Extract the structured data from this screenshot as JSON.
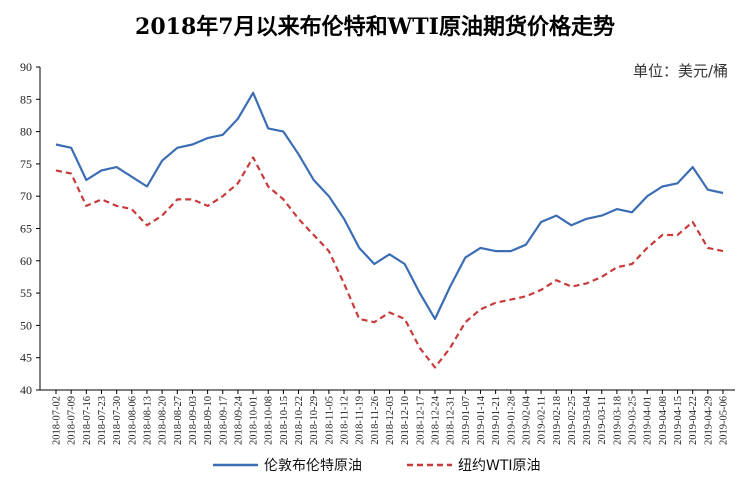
{
  "chart_data": {
    "type": "line",
    "title": "2018年7月以来布伦特和WTI原油期货价格走势",
    "unit_label": "单位：美元/桶",
    "ylim": [
      40,
      90
    ],
    "yticks": [
      40,
      45,
      50,
      55,
      60,
      65,
      70,
      75,
      80,
      85,
      90
    ],
    "xticks": [
      "2018-07-02",
      "2018-07-09",
      "2018-07-16",
      "2018-07-23",
      "2018-07-30",
      "2018-08-06",
      "2018-08-13",
      "2018-08-20",
      "2018-08-27",
      "2018-09-03",
      "2018-09-10",
      "2018-09-17",
      "2018-09-24",
      "2018-10-01",
      "2018-10-08",
      "2018-10-15",
      "2018-10-22",
      "2018-10-29",
      "2018-11-05",
      "2018-11-12",
      "2018-11-19",
      "2018-11-26",
      "2018-12-03",
      "2018-12-10",
      "2018-12-17",
      "2018-12-24",
      "2018-12-31",
      "2019-01-07",
      "2019-01-14",
      "2019-01-21",
      "2019-01-28",
      "2019-02-04",
      "2019-02-11",
      "2019-02-18",
      "2019-02-25",
      "2019-03-04",
      "2019-03-11",
      "2019-03-18",
      "2019-03-25",
      "2019-04-01",
      "2019-04-08",
      "2019-04-15",
      "2019-04-22",
      "2019-04-29",
      "2019-05-06"
    ],
    "grid": false,
    "legend_position": "bottom",
    "series": [
      {
        "name": "伦敦布伦特原油",
        "color": "#3b6db5",
        "style": "solid",
        "x": [
          "2018-07-02",
          "2018-07-09",
          "2018-07-16",
          "2018-07-23",
          "2018-07-30",
          "2018-08-06",
          "2018-08-13",
          "2018-08-20",
          "2018-08-27",
          "2018-09-03",
          "2018-09-10",
          "2018-09-17",
          "2018-09-24",
          "2018-10-01",
          "2018-10-08",
          "2018-10-15",
          "2018-10-22",
          "2018-10-29",
          "2018-11-05",
          "2018-11-12",
          "2018-11-19",
          "2018-11-26",
          "2018-12-03",
          "2018-12-10",
          "2018-12-17",
          "2018-12-24",
          "2018-12-31",
          "2019-01-07",
          "2019-01-14",
          "2019-01-21",
          "2019-01-28",
          "2019-02-04",
          "2019-02-11",
          "2019-02-18",
          "2019-02-25",
          "2019-03-04",
          "2019-03-11",
          "2019-03-18",
          "2019-03-25",
          "2019-04-01",
          "2019-04-08",
          "2019-04-15",
          "2019-04-22",
          "2019-04-29",
          "2019-05-06"
        ],
        "values": [
          78.0,
          77.5,
          72.5,
          74.0,
          74.5,
          73.0,
          71.5,
          75.5,
          77.5,
          78.0,
          79.0,
          79.5,
          82.0,
          86.0,
          80.5,
          80.0,
          76.5,
          72.5,
          70.0,
          66.5,
          62.0,
          59.5,
          61.0,
          59.5,
          55.0,
          51.0,
          56.0,
          60.5,
          62.0,
          61.5,
          61.5,
          62.5,
          66.0,
          67.0,
          65.5,
          66.5,
          67.0,
          68.0,
          67.5,
          70.0,
          71.5,
          72.0,
          74.5,
          71.0,
          70.5
        ]
      },
      {
        "name": "纽约WTI原油",
        "color": "#c83b3b",
        "style": "dashed",
        "x": [
          "2018-07-02",
          "2018-07-09",
          "2018-07-16",
          "2018-07-23",
          "2018-07-30",
          "2018-08-06",
          "2018-08-13",
          "2018-08-20",
          "2018-08-27",
          "2018-09-03",
          "2018-09-10",
          "2018-09-17",
          "2018-09-24",
          "2018-10-01",
          "2018-10-08",
          "2018-10-15",
          "2018-10-22",
          "2018-10-29",
          "2018-11-05",
          "2018-11-12",
          "2018-11-19",
          "2018-11-26",
          "2018-12-03",
          "2018-12-10",
          "2018-12-17",
          "2018-12-24",
          "2018-12-31",
          "2019-01-07",
          "2019-01-14",
          "2019-01-21",
          "2019-01-28",
          "2019-02-04",
          "2019-02-11",
          "2019-02-18",
          "2019-02-25",
          "2019-03-04",
          "2019-03-11",
          "2019-03-18",
          "2019-03-25",
          "2019-04-01",
          "2019-04-08",
          "2019-04-15",
          "2019-04-22",
          "2019-04-29",
          "2019-05-06"
        ],
        "values": [
          74.0,
          73.5,
          68.5,
          69.5,
          68.5,
          68.0,
          65.5,
          67.0,
          69.5,
          69.5,
          68.5,
          70.0,
          72.0,
          76.0,
          71.5,
          69.5,
          66.5,
          64.0,
          61.5,
          56.5,
          51.0,
          50.5,
          52.0,
          51.0,
          46.5,
          43.5,
          46.5,
          50.5,
          52.5,
          53.5,
          54.0,
          54.5,
          55.5,
          57.0,
          56.0,
          56.5,
          57.5,
          59.0,
          59.5,
          62.0,
          64.0,
          64.0,
          66.0,
          62.0,
          61.5
        ]
      }
    ]
  }
}
